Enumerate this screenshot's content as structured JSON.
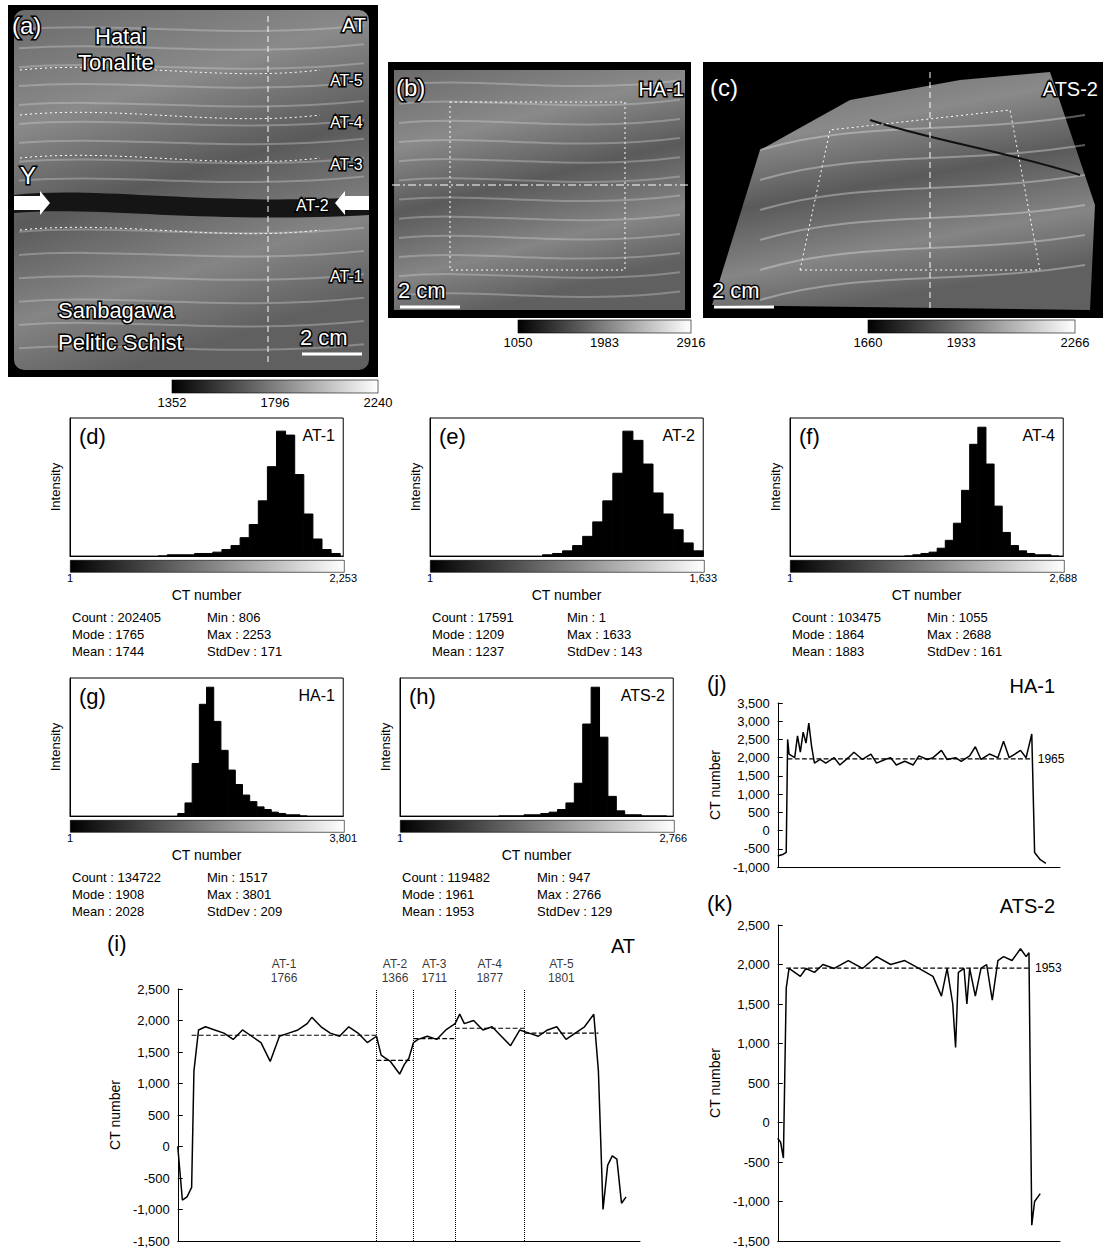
{
  "images": [
    {
      "letter": "(a)",
      "name": "AT",
      "labels": [
        "Hatai Tonalite",
        "Sanbagawa Pelitic Schist"
      ],
      "zones": [
        "AT-5",
        "AT-4",
        "AT-3",
        "AT-2",
        "AT-1"
      ],
      "marker": "Y",
      "scale": "2 cm",
      "colorbar": {
        "range": [
          1352,
          2240
        ],
        "ticks": [
          1352,
          1796,
          2240
        ]
      }
    },
    {
      "letter": "(b)",
      "name": "HA-1",
      "scale": "2 cm",
      "colorbar": {
        "range": [
          1050,
          2916
        ],
        "ticks": [
          1050,
          1983,
          2916
        ]
      }
    },
    {
      "letter": "(c)",
      "name": "ATS-2",
      "scale": "2 cm",
      "colorbar": {
        "range": [
          1660,
          2266
        ],
        "ticks": [
          1660,
          1933,
          2266
        ]
      }
    }
  ],
  "chart_data": [
    {
      "type": "histogram",
      "letter": "(d)",
      "title": "AT-1",
      "x_label": "CT number",
      "y_label": "Intensity",
      "xlim": [
        1,
        2253
      ],
      "xticks": [
        1,
        2253
      ],
      "ylim": [
        0,
        105
      ],
      "tick_labels": "x",
      "color": "#000000",
      "bins": [
        728,
        803,
        878,
        953,
        1028,
        1103,
        1178,
        1253,
        1328,
        1403,
        1478,
        1553,
        1628,
        1703,
        1778,
        1853,
        1928,
        2003,
        2078,
        2153,
        2228
      ],
      "counts": [
        0,
        1,
        1,
        1,
        2,
        2,
        3,
        5,
        8,
        14,
        24,
        42,
        68,
        95,
        92,
        62,
        32,
        13,
        5,
        2
      ],
      "stats": [
        [
          "Count : 202405",
          "Min : 806"
        ],
        [
          "Mode : 1765",
          "Max : 2253"
        ],
        [
          "Mean : 1744",
          "StdDev : 171"
        ]
      ]
    },
    {
      "type": "histogram",
      "letter": "(e)",
      "title": "AT-2",
      "x_label": "CT number",
      "y_label": "Intensity",
      "xlim": [
        1,
        1633
      ],
      "xticks": [
        1,
        1633
      ],
      "ylim": [
        0,
        105
      ],
      "tick_labels": "x",
      "color": "#000000",
      "bins": [
        673,
        733,
        793,
        853,
        913,
        973,
        1033,
        1093,
        1153,
        1213,
        1273,
        1333,
        1393,
        1453,
        1513,
        1573,
        1633
      ],
      "counts": [
        1,
        2,
        4,
        8,
        15,
        26,
        42,
        63,
        95,
        88,
        70,
        48,
        32,
        20,
        10,
        4
      ],
      "stats": [
        [
          "Count : 17591",
          "Min : 1"
        ],
        [
          "Mode : 1209",
          "Max : 1633"
        ],
        [
          "Mean : 1237",
          "StdDev : 143"
        ]
      ]
    },
    {
      "type": "histogram",
      "letter": "(f)",
      "title": "AT-4",
      "x_label": "CT number",
      "y_label": "Intensity",
      "xlim": [
        1,
        2688
      ],
      "xticks": [
        1,
        2688
      ],
      "ylim": [
        0,
        105
      ],
      "tick_labels": "x",
      "color": "#000000",
      "bins": [
        1128,
        1208,
        1288,
        1368,
        1448,
        1528,
        1608,
        1688,
        1768,
        1848,
        1928,
        2008,
        2088,
        2168,
        2248,
        2328,
        2408,
        2488,
        2568,
        2648
      ],
      "counts": [
        0,
        1,
        2,
        3,
        6,
        12,
        25,
        50,
        85,
        98,
        70,
        38,
        18,
        8,
        4,
        2,
        1,
        1,
        0
      ],
      "stats": [
        [
          "Count : 103475",
          "Min : 1055"
        ],
        [
          "Mode : 1864",
          "Max : 2688"
        ],
        [
          "Mean : 1883",
          "StdDev : 161"
        ]
      ]
    },
    {
      "type": "histogram",
      "letter": "(g)",
      "title": "HA-1",
      "x_label": "CT number",
      "y_label": "Intensity",
      "xlim": [
        1,
        3801
      ],
      "xticks": [
        1,
        3801
      ],
      "ylim": [
        0,
        105
      ],
      "tick_labels": "x",
      "color": "#000000",
      "bins": [
        1500,
        1600,
        1700,
        1800,
        1900,
        2000,
        2100,
        2200,
        2300,
        2400,
        2500,
        2600,
        2700,
        2800,
        2900,
        3000,
        3100,
        3200,
        3300
      ],
      "counts": [
        2,
        10,
        40,
        85,
        98,
        72,
        50,
        35,
        24,
        16,
        11,
        7,
        5,
        3,
        2,
        1,
        1,
        0
      ],
      "stats": [
        [
          "Count : 134722",
          "Min : 1517"
        ],
        [
          "Mode : 1908",
          "Max : 3801"
        ],
        [
          "Mean : 2028",
          "StdDev : 209"
        ]
      ]
    },
    {
      "type": "histogram",
      "letter": "(h)",
      "title": "ATS-2",
      "x_label": "CT number",
      "y_label": "Intensity",
      "xlim": [
        1,
        2766
      ],
      "xticks": [
        1,
        2766
      ],
      "ylim": [
        0,
        105
      ],
      "tick_labels": "x",
      "color": "#000000",
      "bins": [
        1000,
        1085,
        1170,
        1255,
        1340,
        1425,
        1510,
        1595,
        1680,
        1765,
        1850,
        1935,
        2020,
        2105,
        2190,
        2275,
        2360,
        2445,
        2530,
        2615,
        2700
      ],
      "counts": [
        0,
        0,
        0,
        1,
        1,
        2,
        3,
        5,
        10,
        25,
        70,
        98,
        60,
        15,
        4,
        1,
        1,
        0,
        0,
        0
      ],
      "stats": [
        [
          "Count : 119482",
          "Min : 947"
        ],
        [
          "Mode : 1961",
          "Max : 2766"
        ],
        [
          "Mean : 1953",
          "StdDev : 129"
        ]
      ]
    },
    {
      "type": "line",
      "letter": "(i)",
      "title": "AT",
      "y_label": "CT number",
      "xlim": [
        0,
        100
      ],
      "ylim": [
        -1500,
        2500
      ],
      "yticks": [
        -1500,
        -1000,
        -500,
        0,
        500,
        1000,
        1500,
        2000,
        2500
      ],
      "grid": false,
      "tick_labels": "y",
      "color": "#000000",
      "x": [
        0,
        1,
        2,
        3,
        3.5,
        4.5,
        6,
        8,
        10,
        12,
        14,
        16,
        18,
        20,
        22,
        24,
        26,
        28,
        29,
        31,
        33,
        35,
        37,
        39,
        41,
        43,
        44,
        45,
        46,
        47,
        48,
        49,
        50,
        51,
        52,
        54,
        56,
        58,
        60,
        61,
        62,
        64,
        66,
        68,
        70,
        72,
        74,
        76,
        78,
        80,
        82,
        84,
        86,
        88,
        90,
        91,
        92,
        93,
        94,
        95,
        96,
        97
      ],
      "values": [
        0,
        -850,
        -800,
        -650,
        1200,
        1850,
        1900,
        1850,
        1800,
        1700,
        1850,
        1750,
        1650,
        1350,
        1750,
        1800,
        1850,
        1950,
        2050,
        1900,
        1800,
        1750,
        1900,
        1800,
        1650,
        1750,
        1450,
        1400,
        1350,
        1250,
        1150,
        1300,
        1400,
        1650,
        1700,
        1750,
        1700,
        1850,
        1950,
        2100,
        1950,
        2000,
        1850,
        1900,
        1750,
        1600,
        1850,
        1800,
        1750,
        1850,
        1900,
        1700,
        1800,
        1900,
        2100,
        1200,
        -1000,
        -300,
        -150,
        -200,
        -900,
        -800
      ],
      "segments": [
        {
          "label": "AT-1",
          "mean": 1766,
          "x": [
            3,
            43
          ]
        },
        {
          "label": "AT-2",
          "mean": 1366,
          "x": [
            43,
            51
          ]
        },
        {
          "label": "AT-3",
          "mean": 1711,
          "x": [
            51,
            60
          ]
        },
        {
          "label": "AT-4",
          "mean": 1877,
          "x": [
            60,
            75
          ]
        },
        {
          "label": "AT-5",
          "mean": 1801,
          "x": [
            75,
            91
          ]
        }
      ]
    },
    {
      "type": "line",
      "letter": "(j)",
      "title": "HA-1",
      "y_label": "CT number",
      "xlim": [
        0,
        100
      ],
      "ylim": [
        -1000,
        3500
      ],
      "yticks": [
        -1000,
        -500,
        0,
        500,
        1000,
        1500,
        2000,
        2500,
        3000,
        3500
      ],
      "grid": false,
      "tick_labels": "y",
      "color": "#000000",
      "x": [
        0,
        2,
        3,
        3.5,
        4,
        6,
        7,
        8,
        9,
        10,
        11,
        12,
        13,
        15,
        17,
        20,
        22,
        25,
        27,
        30,
        33,
        35,
        38,
        40,
        42,
        45,
        48,
        50,
        53,
        55,
        58,
        60,
        63,
        65,
        68,
        70,
        72,
        75,
        78,
        80,
        82,
        84,
        86,
        88,
        90,
        91,
        93,
        95
      ],
      "values": [
        -700,
        -650,
        -600,
        2500,
        2100,
        2000,
        2600,
        2150,
        2700,
        2400,
        2950,
        2300,
        1850,
        1950,
        1850,
        2000,
        1800,
        2000,
        2150,
        1950,
        2100,
        1850,
        1950,
        2000,
        1800,
        1900,
        1800,
        2050,
        1950,
        2000,
        2200,
        1950,
        2000,
        1900,
        2050,
        2300,
        1950,
        2100,
        2000,
        2450,
        2000,
        2100,
        2200,
        2000,
        2650,
        -600,
        -800,
        -900
      ],
      "segments": [
        {
          "mean": 1965,
          "x": [
            3.5,
            90
          ]
        }
      ]
    },
    {
      "type": "line",
      "letter": "(k)",
      "title": "ATS-2",
      "y_label": "CT number",
      "xlim": [
        0,
        100
      ],
      "ylim": [
        -1500,
        2500
      ],
      "yticks": [
        -1500,
        -1000,
        -500,
        0,
        500,
        1000,
        1500,
        2000,
        2500
      ],
      "grid": false,
      "tick_labels": "y",
      "color": "#000000",
      "x": [
        0,
        1,
        2,
        3,
        4,
        6,
        8,
        10,
        13,
        16,
        20,
        25,
        30,
        35,
        40,
        45,
        50,
        55,
        58,
        60,
        62,
        63,
        64,
        66,
        67,
        68,
        70,
        72,
        74,
        76,
        78,
        80,
        83,
        86,
        88,
        89,
        90,
        91,
        93
      ],
      "values": [
        -200,
        -250,
        -450,
        1700,
        1950,
        1900,
        1850,
        1950,
        1900,
        2000,
        1950,
        2050,
        1950,
        2100,
        2000,
        2050,
        1950,
        1850,
        1600,
        1950,
        1500,
        950,
        1900,
        1950,
        1500,
        1950,
        1600,
        1950,
        2000,
        1550,
        2050,
        2100,
        2050,
        2200,
        2100,
        2150,
        -1300,
        -1000,
        -900
      ],
      "segments": [
        {
          "mean": 1953,
          "x": [
            3,
            89
          ]
        }
      ]
    }
  ]
}
